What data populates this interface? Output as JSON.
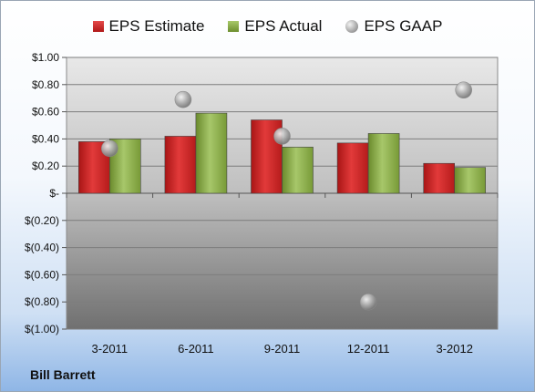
{
  "company": "Bill Barrett",
  "chart_data": {
    "type": "bar",
    "categories": [
      "3-2011",
      "6-2011",
      "9-2011",
      "12-2011",
      "3-2012"
    ],
    "series": [
      {
        "name": "EPS Estimate",
        "type": "bar",
        "color": "#c8201f",
        "values": [
          0.38,
          0.42,
          0.54,
          0.37,
          0.22
        ]
      },
      {
        "name": "EPS Actual",
        "type": "bar",
        "color": "#86a843",
        "values": [
          0.4,
          0.59,
          0.34,
          0.44,
          0.19
        ]
      },
      {
        "name": "EPS GAAP",
        "type": "scatter",
        "color": "#a0a0a0",
        "values": [
          0.33,
          0.69,
          0.42,
          -0.8,
          0.76
        ]
      }
    ],
    "ylim": [
      -1.0,
      1.0
    ],
    "yticks": [
      1.0,
      0.8,
      0.6,
      0.4,
      0.2,
      0,
      -0.2,
      -0.4,
      -0.6,
      -0.8,
      -1.0
    ],
    "ytick_labels": [
      "$1.00",
      "$0.80",
      "$0.60",
      "$0.40",
      "$0.20",
      "$-",
      "$(0.20)",
      "$(0.40)",
      "$(0.60)",
      "$(0.80)",
      "$(1.00)"
    ],
    "grid": true,
    "legend": "top-center"
  }
}
